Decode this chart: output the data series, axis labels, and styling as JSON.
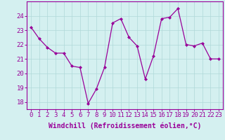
{
  "x": [
    0,
    1,
    2,
    3,
    4,
    5,
    6,
    7,
    8,
    9,
    10,
    11,
    12,
    13,
    14,
    15,
    16,
    17,
    18,
    19,
    20,
    21,
    22,
    23
  ],
  "y": [
    23.2,
    22.4,
    21.8,
    21.4,
    21.4,
    20.5,
    20.4,
    17.9,
    18.9,
    20.4,
    23.5,
    23.8,
    22.5,
    21.9,
    19.6,
    21.2,
    23.8,
    23.9,
    24.5,
    22.0,
    21.9,
    22.1,
    21.0,
    21.0
  ],
  "ylim": [
    17.5,
    25.0
  ],
  "yticks": [
    18,
    19,
    20,
    21,
    22,
    23,
    24
  ],
  "xticks": [
    0,
    1,
    2,
    3,
    4,
    5,
    6,
    7,
    8,
    9,
    10,
    11,
    12,
    13,
    14,
    15,
    16,
    17,
    18,
    19,
    20,
    21,
    22,
    23
  ],
  "line_color": "#990099",
  "marker": "D",
  "marker_size": 2,
  "background_color": "#d4f0f0",
  "grid_color": "#b0d8d8",
  "xlabel": "Windchill (Refroidissement éolien,°C)",
  "xlabel_fontsize": 7,
  "tick_fontsize": 6.5,
  "tick_color": "#990099",
  "label_color": "#990099",
  "spine_color": "#990099"
}
